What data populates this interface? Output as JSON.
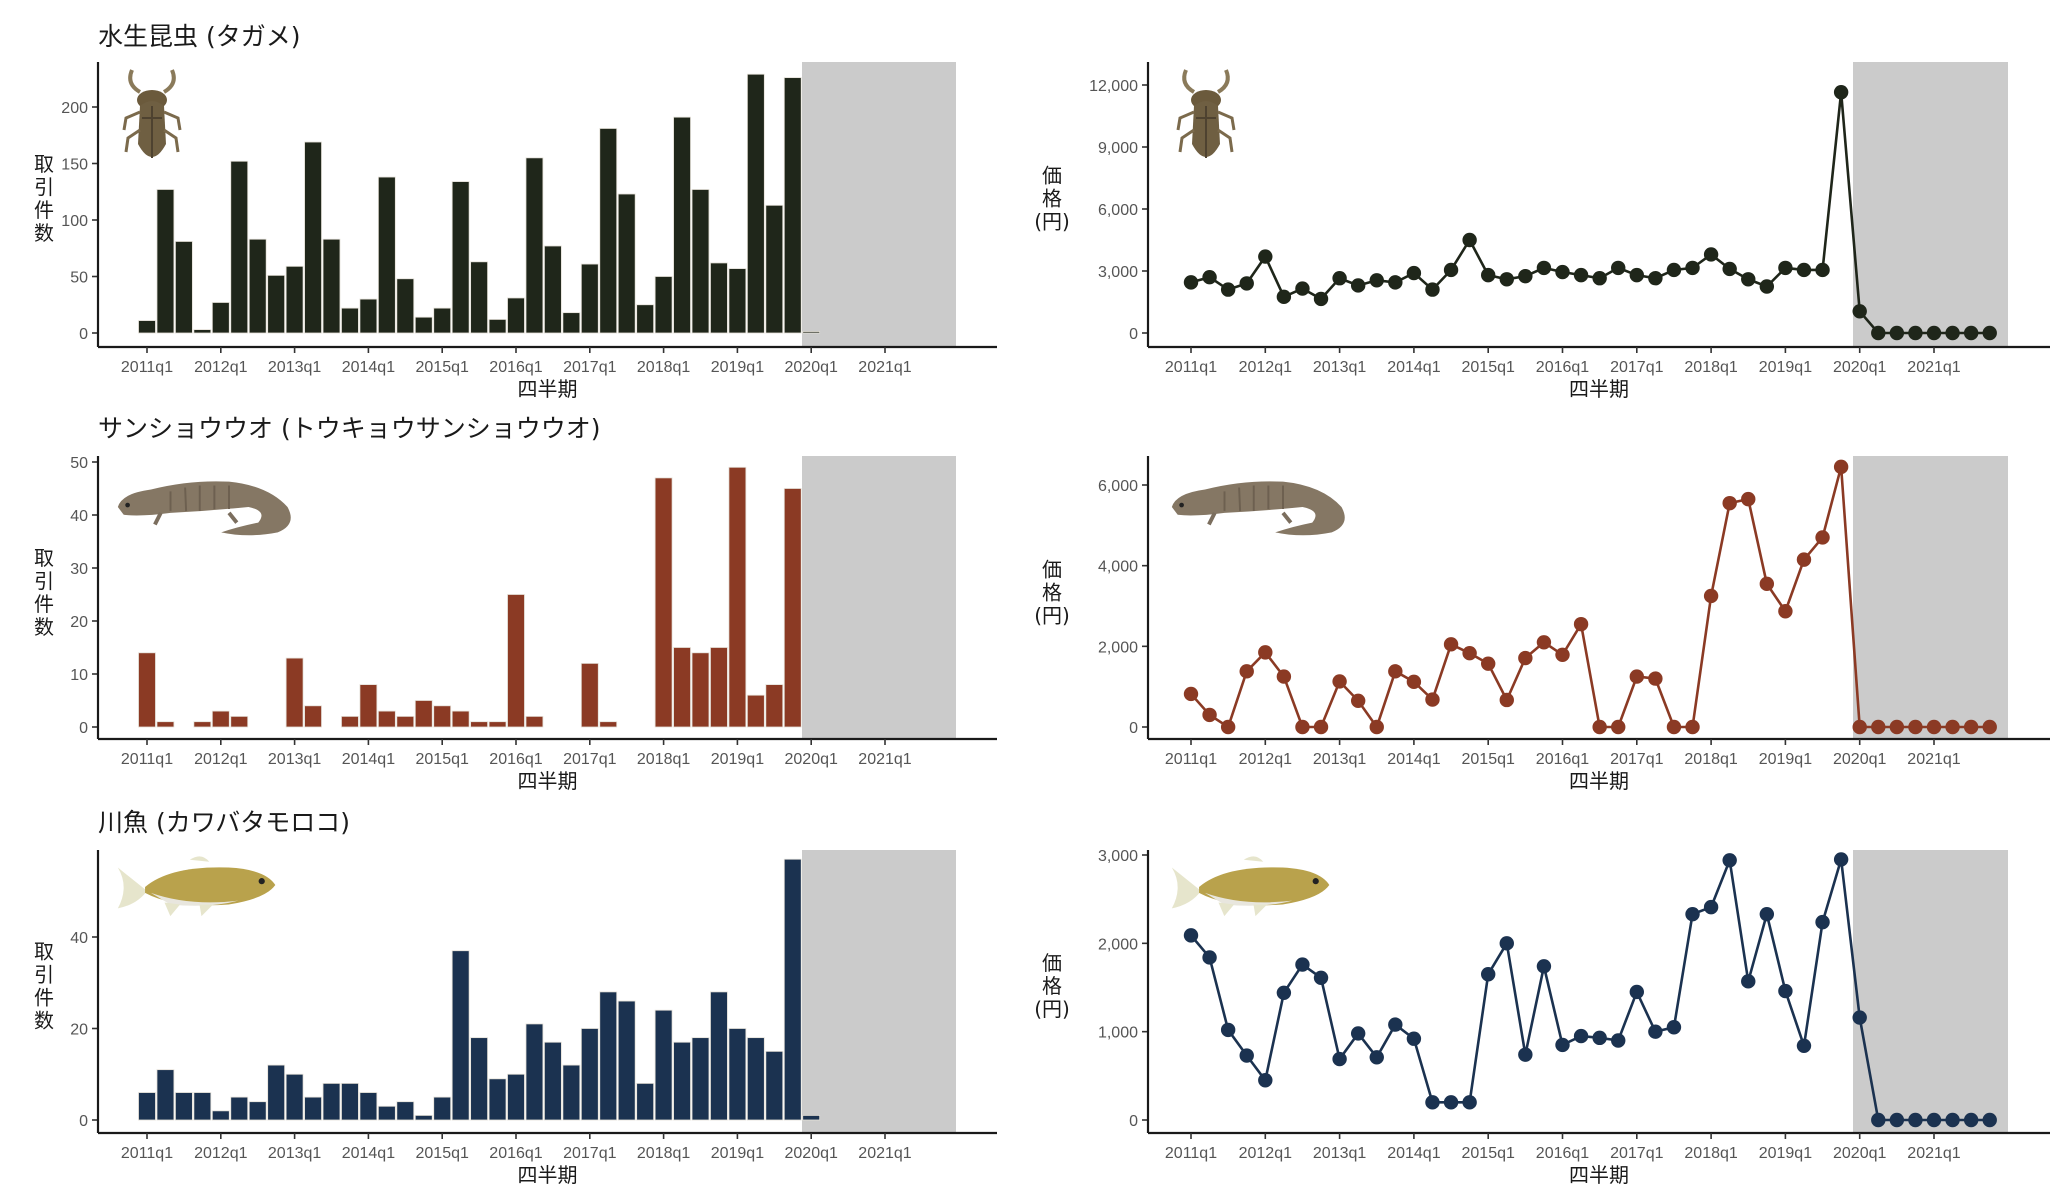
{
  "chart_data": [
    {
      "id": "insect-count",
      "type": "bar",
      "panel_title": "水生昆虫 (タガメ)",
      "species_icon": "water-bug-icon",
      "color": "#1f261a",
      "ylabel": "取引件数",
      "xlabel": "四半期",
      "ylim": [
        0,
        240
      ],
      "yticks": [
        0,
        50,
        100,
        150,
        200
      ],
      "ytick_labels": [
        "0",
        "50",
        "100",
        "150",
        "200"
      ],
      "values": [
        11,
        127,
        81,
        3,
        27,
        152,
        83,
        51,
        59,
        169,
        83,
        22,
        30,
        138,
        48,
        14,
        22,
        134,
        63,
        12,
        31,
        155,
        77,
        18,
        61,
        181,
        123,
        25,
        50,
        191,
        127,
        62,
        57,
        229,
        113,
        226,
        1,
        0,
        0,
        0,
        0,
        0,
        0,
        0
      ]
    },
    {
      "id": "insect-price",
      "type": "line",
      "panel_title": "",
      "species_icon": "water-bug-icon",
      "color": "#1f261a",
      "ylabel": "価格(円)",
      "xlabel": "四半期",
      "ylim": [
        0,
        12000
      ],
      "yticks": [
        0,
        3000,
        6000,
        9000,
        12000
      ],
      "ytick_labels": [
        "0",
        "3,000",
        "6,000",
        "9,000",
        "12,000"
      ],
      "values": [
        2450,
        2700,
        2100,
        2400,
        3700,
        1750,
        2150,
        1650,
        2650,
        2300,
        2550,
        2450,
        2900,
        2100,
        3050,
        4500,
        2800,
        2600,
        2750,
        3150,
        2950,
        2800,
        2650,
        3150,
        2800,
        2650,
        3050,
        3150,
        3800,
        3100,
        2600,
        2250,
        3150,
        3050,
        3050,
        11650,
        1050,
        0,
        0,
        0,
        0,
        0,
        0,
        0
      ]
    },
    {
      "id": "salamander-count",
      "type": "bar",
      "panel_title": "サンショウウオ (トウキョウサンショウウオ)",
      "species_icon": "salamander-icon",
      "color": "#8b3a24",
      "ylabel": "取引件数",
      "xlabel": "四半期",
      "ylim": [
        0,
        50
      ],
      "yticks": [
        0,
        10,
        20,
        30,
        40,
        50
      ],
      "ytick_labels": [
        "0",
        "10",
        "20",
        "30",
        "40",
        "50"
      ],
      "values": [
        14,
        1,
        0,
        1,
        3,
        2,
        0,
        0,
        13,
        4,
        0,
        2,
        8,
        3,
        2,
        5,
        4,
        3,
        1,
        1,
        25,
        2,
        0,
        0,
        12,
        1,
        0,
        0,
        47,
        15,
        14,
        15,
        49,
        6,
        8,
        45,
        0,
        0,
        0,
        0,
        0,
        0,
        0,
        0
      ]
    },
    {
      "id": "salamander-price",
      "type": "line",
      "panel_title": "",
      "species_icon": "salamander-icon",
      "color": "#8b3a24",
      "ylabel": "価格(円)",
      "xlabel": "四半期",
      "ylim": [
        0,
        6500
      ],
      "yticks": [
        0,
        2000,
        4000,
        6000
      ],
      "ytick_labels": [
        "0",
        "2,000",
        "4,000",
        "6,000"
      ],
      "values": [
        820,
        300,
        0,
        1380,
        1850,
        1250,
        0,
        0,
        1130,
        650,
        0,
        1380,
        1120,
        680,
        2050,
        1830,
        1570,
        670,
        1710,
        2100,
        1790,
        2550,
        0,
        0,
        1250,
        1200,
        0,
        0,
        3250,
        5550,
        5650,
        3550,
        2870,
        4150,
        4700,
        6450,
        0,
        0,
        0,
        0,
        0,
        0,
        0,
        0
      ]
    },
    {
      "id": "fish-count",
      "type": "bar",
      "panel_title": "川魚 (カワバタモロコ)",
      "species_icon": "fish-icon",
      "color": "#1b3250",
      "ylabel": "取引件数",
      "xlabel": "四半期",
      "ylim": [
        0,
        58
      ],
      "yticks": [
        0,
        20,
        40
      ],
      "ytick_labels": [
        "0",
        "20",
        "40"
      ],
      "values": [
        6,
        11,
        6,
        6,
        2,
        5,
        4,
        12,
        10,
        5,
        8,
        8,
        6,
        3,
        4,
        1,
        5,
        37,
        18,
        9,
        10,
        21,
        17,
        12,
        20,
        28,
        26,
        8,
        24,
        17,
        18,
        28,
        20,
        18,
        15,
        57,
        1,
        0,
        0,
        0,
        0,
        0,
        0,
        0
      ]
    },
    {
      "id": "fish-price",
      "type": "line",
      "panel_title": "",
      "species_icon": "fish-icon",
      "color": "#1b3250",
      "ylabel": "価格(円)",
      "xlabel": "四半期",
      "ylim": [
        0,
        3000
      ],
      "yticks": [
        0,
        1000,
        2000,
        3000
      ],
      "ytick_labels": [
        "0",
        "1,000",
        "2,000",
        "3,000"
      ],
      "values": [
        2090,
        1840,
        1020,
        730,
        450,
        1440,
        1760,
        1610,
        690,
        980,
        710,
        1080,
        920,
        200,
        200,
        200,
        1650,
        2000,
        740,
        1740,
        850,
        950,
        930,
        900,
        1450,
        1000,
        1050,
        2330,
        2410,
        2940,
        1570,
        2330,
        1460,
        840,
        2240,
        2950,
        1160,
        0,
        0,
        0,
        0,
        0,
        0,
        0
      ]
    }
  ],
  "shared": {
    "quarters": [
      "2011q1",
      "2011q2",
      "2011q3",
      "2011q4",
      "2012q1",
      "2012q2",
      "2012q3",
      "2012q4",
      "2013q1",
      "2013q2",
      "2013q3",
      "2013q4",
      "2014q1",
      "2014q2",
      "2014q3",
      "2014q4",
      "2015q1",
      "2015q2",
      "2015q3",
      "2015q4",
      "2016q1",
      "2016q2",
      "2016q3",
      "2016q4",
      "2017q1",
      "2017q2",
      "2017q3",
      "2017q4",
      "2018q1",
      "2018q2",
      "2018q3",
      "2018q4",
      "2019q1",
      "2019q2",
      "2019q3",
      "2019q4",
      "2020q1",
      "2020q2",
      "2020q3",
      "2020q4",
      "2021q1",
      "2021q2",
      "2021q3",
      "2021q4"
    ],
    "xtick_labels": [
      "2011q1",
      "2012q1",
      "2013q1",
      "2014q1",
      "2015q1",
      "2016q1",
      "2017q1",
      "2018q1",
      "2019q1",
      "2020q1",
      "2021q1"
    ],
    "bar_chart_last_quarter": "2020q1",
    "line_chart_last_quarter": "2021q4",
    "shaded_region": {
      "from": "2020q1",
      "to": "2021q4",
      "color": "#cbcbcb"
    }
  }
}
